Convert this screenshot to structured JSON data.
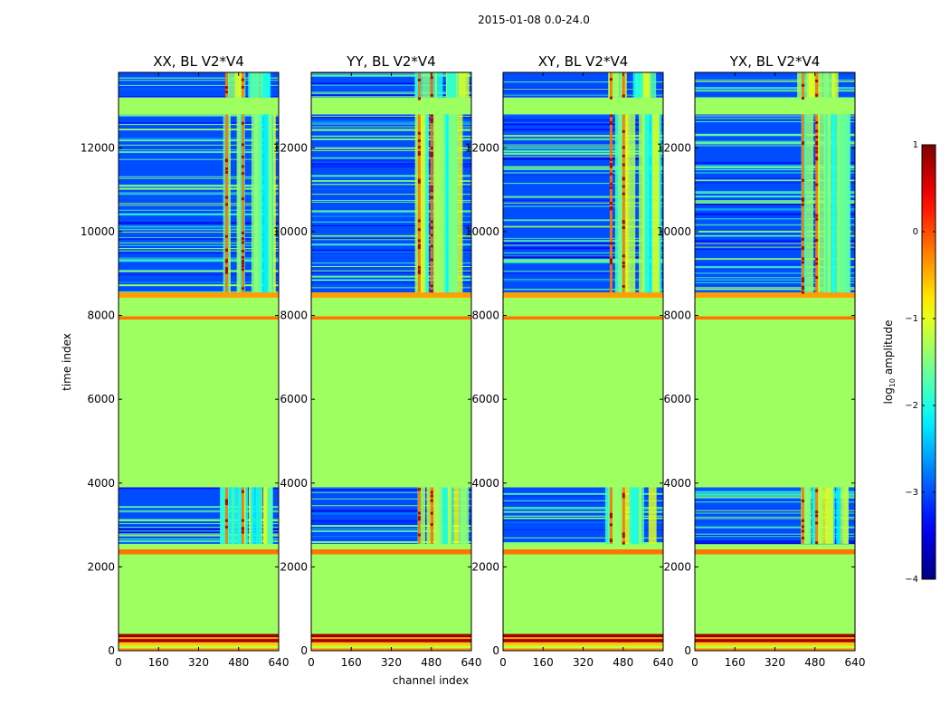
{
  "suptitle": "2015-01-08 0.0-24.0",
  "chart_data": {
    "type": "heatmap",
    "xlabel": "channel index",
    "ylabel": "time index",
    "xlim": [
      0,
      640
    ],
    "ylim": [
      0,
      13800
    ],
    "xticks": [
      0,
      160,
      320,
      480,
      640
    ],
    "yticks": [
      0,
      2000,
      4000,
      6000,
      8000,
      10000,
      12000
    ],
    "panels": [
      {
        "title": "XX, BL V2*V4",
        "rfi_channels": [
          430,
          495
        ],
        "rfi_band": [
          405,
          600
        ]
      },
      {
        "title": "YY, BL V2*V4",
        "rfi_channels": [
          430,
          480
        ],
        "rfi_band": [
          405,
          600
        ]
      },
      {
        "title": "XY, BL V2*V4",
        "rfi_channels": [
          430,
          480
        ],
        "rfi_band": [
          405,
          600
        ]
      },
      {
        "title": "YX, BL V2*V4",
        "rfi_channels": [
          430,
          485
        ],
        "rfi_band": [
          405,
          600
        ]
      }
    ],
    "time_regions": [
      {
        "start": 0,
        "end": 60,
        "level": -0.3
      },
      {
        "start": 60,
        "end": 120,
        "level": -1.2
      },
      {
        "start": 120,
        "end": 200,
        "level": -0.6
      },
      {
        "start": 200,
        "end": 280,
        "level": 0.8
      },
      {
        "start": 280,
        "end": 320,
        "level": -0.4
      },
      {
        "start": 320,
        "end": 400,
        "level": 0.85
      },
      {
        "start": 400,
        "end": 2300,
        "level": -1.35
      },
      {
        "start": 2300,
        "end": 2420,
        "level": -0.2
      },
      {
        "start": 2420,
        "end": 2550,
        "level": -1.35
      },
      {
        "start": 2550,
        "end": 3900,
        "level": -3.0,
        "noisy": true
      },
      {
        "start": 3900,
        "end": 7900,
        "level": -1.35
      },
      {
        "start": 7900,
        "end": 7980,
        "level": -0.2
      },
      {
        "start": 7980,
        "end": 8420,
        "level": -1.35
      },
      {
        "start": 8420,
        "end": 8550,
        "level": -0.4
      },
      {
        "start": 8550,
        "end": 12800,
        "level": -3.0,
        "noisy": true
      },
      {
        "start": 12800,
        "end": 13200,
        "level": -1.35
      },
      {
        "start": 13200,
        "end": 13800,
        "level": -3.0,
        "noisy": true
      }
    ],
    "colorbar": {
      "label_prefix": "log",
      "label_sub": "10",
      "label_suffix": " amplitude",
      "range": [
        -4,
        1
      ],
      "ticks": [
        "1",
        "0",
        "−1",
        "−2",
        "−3",
        "−4"
      ],
      "colormap": "jet"
    }
  }
}
